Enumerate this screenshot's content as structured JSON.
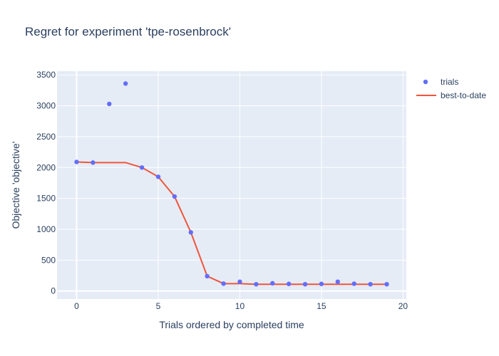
{
  "chart_data": {
    "type": "scatter",
    "title": "Regret for experiment 'tpe-rosenbrock'",
    "xlabel": "Trials ordered by completed time",
    "ylabel": "Objective 'objective'",
    "xlim": [
      -1.2,
      20.2
    ],
    "ylim": [
      -130,
      3560
    ],
    "xticks": [
      0,
      5,
      10,
      15,
      20
    ],
    "yticks": [
      0,
      500,
      1000,
      1500,
      2000,
      2500,
      3000,
      3500
    ],
    "grid": true,
    "legend_position": "top-right",
    "plot_background": "#e5ecf6",
    "series": [
      {
        "name": "trials",
        "mode": "markers",
        "color": "#636efa",
        "x": [
          0,
          1,
          2,
          3,
          4,
          5,
          6,
          7,
          8,
          9,
          10,
          11,
          12,
          13,
          14,
          15,
          16,
          17,
          18,
          19
        ],
        "y": [
          2090,
          2080,
          3030,
          3360,
          2000,
          1850,
          1530,
          950,
          240,
          120,
          150,
          110,
          125,
          115,
          110,
          115,
          150,
          118,
          110,
          110
        ]
      },
      {
        "name": "best-to-date",
        "mode": "lines",
        "color": "#ef553b",
        "x": [
          0,
          1,
          2,
          3,
          4,
          5,
          6,
          7,
          8,
          9,
          10,
          11,
          12,
          13,
          14,
          15,
          16,
          17,
          18,
          19
        ],
        "y": [
          2090,
          2080,
          2080,
          2080,
          2000,
          1850,
          1530,
          950,
          240,
          120,
          120,
          110,
          110,
          110,
          110,
          110,
          110,
          110,
          110,
          110
        ]
      }
    ]
  }
}
